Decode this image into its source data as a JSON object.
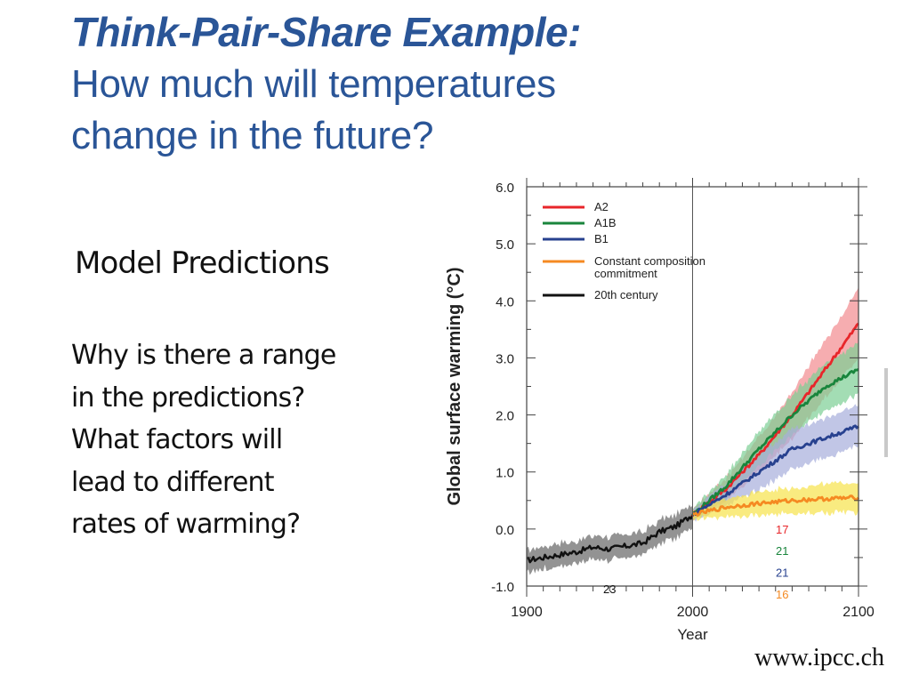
{
  "slide": {
    "title": "Think-Pair-Share Example:",
    "subtitle_lines": [
      "How much will temperatures",
      "change in the future?"
    ],
    "subhead": "Model Predictions",
    "question_lines": [
      "Why is there a  range",
      "in the predictions?",
      "What factors will",
      "lead to different",
      "rates of warming?"
    ],
    "source": "www.ipcc.ch",
    "title_color": "#2a5597"
  },
  "chart_data": {
    "type": "line",
    "title": "",
    "xlabel": "Year",
    "ylabel": "Global surface warming (°C)",
    "xlim": [
      1900,
      2100
    ],
    "ylim": [
      -1.0,
      6.0
    ],
    "x_ticks": [
      1900,
      2000,
      2100
    ],
    "y_ticks": [
      -1.0,
      0.0,
      1.0,
      2.0,
      3.0,
      4.0,
      5.0,
      6.0
    ],
    "y_tick_labels": [
      "-1.0",
      "0.0",
      "1.0",
      "2.0",
      "3.0",
      "4.0",
      "5.0",
      "6.0"
    ],
    "legend_position": "top-left",
    "legend": [
      {
        "label": "A2",
        "color": "#e8262a"
      },
      {
        "label": "A1B",
        "color": "#19853c"
      },
      {
        "label": "B1",
        "color": "#27418f"
      },
      {
        "label": "Constant composition commitment",
        "color": "#f58a22"
      },
      {
        "label": "20th century",
        "color": "#111111"
      }
    ],
    "series": [
      {
        "name": "20th century",
        "color": "#111111",
        "band_color": "#808080",
        "x": [
          1900,
          1910,
          1920,
          1930,
          1940,
          1950,
          1960,
          1970,
          1980,
          1990,
          2000
        ],
        "y": [
          -0.55,
          -0.5,
          -0.45,
          -0.4,
          -0.32,
          -0.35,
          -0.3,
          -0.25,
          -0.05,
          0.05,
          0.25
        ],
        "spread": 0.2,
        "models": "23"
      },
      {
        "name": "A2",
        "color": "#e8262a",
        "band_color": "#f28a8e",
        "x": [
          2000,
          2020,
          2040,
          2060,
          2080,
          2100
        ],
        "y": [
          0.25,
          0.7,
          1.3,
          2.0,
          2.8,
          3.6
        ],
        "spread": [
          0.1,
          0.2,
          0.3,
          0.4,
          0.5,
          0.6
        ],
        "models": "17"
      },
      {
        "name": "A1B",
        "color": "#19853c",
        "band_color": "#7ccf94",
        "x": [
          2000,
          2020,
          2040,
          2060,
          2080,
          2100
        ],
        "y": [
          0.25,
          0.75,
          1.4,
          2.0,
          2.5,
          2.8
        ],
        "spread": [
          0.1,
          0.2,
          0.3,
          0.35,
          0.4,
          0.45
        ],
        "models": "21"
      },
      {
        "name": "B1",
        "color": "#27418f",
        "band_color": "#a7aedb",
        "x": [
          2000,
          2020,
          2040,
          2060,
          2080,
          2100
        ],
        "y": [
          0.25,
          0.6,
          1.0,
          1.4,
          1.6,
          1.8
        ],
        "spread": [
          0.1,
          0.2,
          0.3,
          0.35,
          0.35,
          0.35
        ],
        "models": "21"
      },
      {
        "name": "Constant composition commitment",
        "color": "#f58a22",
        "band_color": "#f7e24a",
        "x": [
          2000,
          2020,
          2040,
          2060,
          2080,
          2100
        ],
        "y": [
          0.25,
          0.38,
          0.45,
          0.5,
          0.53,
          0.55
        ],
        "spread": [
          0.08,
          0.15,
          0.2,
          0.22,
          0.25,
          0.25
        ],
        "models": "16"
      }
    ],
    "model_count_labels": [
      {
        "text": "23",
        "color": "#111111",
        "x": 1950,
        "y": -1.05
      },
      {
        "text": "17",
        "color": "#e8262a",
        "x": 2054,
        "y": 0.0
      },
      {
        "text": "21",
        "color": "#19853c",
        "x": 2054,
        "y": -0.38
      },
      {
        "text": "21",
        "color": "#27418f",
        "x": 2054,
        "y": -0.76
      },
      {
        "text": "16",
        "color": "#f58a22",
        "x": 2054,
        "y": -1.14
      }
    ],
    "vertical_marker": 2000
  }
}
